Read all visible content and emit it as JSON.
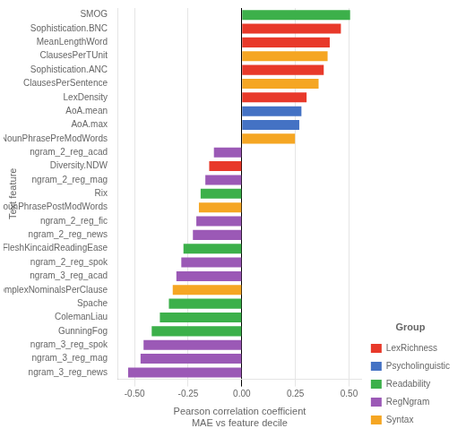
{
  "chart_data": {
    "type": "bar",
    "orientation": "horizontal",
    "categories": [
      "SMOG",
      "Sophistication.BNC",
      "MeanLengthWord",
      "ClausesPerTUnit",
      "Sophistication.ANC",
      "ClausesPerSentence",
      "LexDensity",
      "AoA.mean",
      "AoA.max",
      "NounPhrasePreModWords",
      "ngram_2_reg_acad",
      "Diversity.NDW",
      "ngram_2_reg_mag",
      "Rix",
      "NounPhrasePostModWords",
      "ngram_2_reg_fic",
      "ngram_2_reg_news",
      "FleshKincaidReadingEase",
      "ngram_2_reg_spok",
      "ngram_3_reg_acad",
      "ComplexNominalsPerClause",
      "Spache",
      "ColemanLiau",
      "GunningFog",
      "ngram_3_reg_spok",
      "ngram_3_reg_mag",
      "ngram_3_reg_news"
    ],
    "series": [
      {
        "name": "LexRichness",
        "color": "#E8392A",
        "values": [
          null,
          0.462,
          0.41,
          null,
          0.382,
          null,
          0.302,
          null,
          null,
          null,
          null,
          -0.152,
          null,
          null,
          null,
          null,
          null,
          null,
          null,
          null,
          null,
          null,
          null,
          null,
          null,
          null,
          null
        ]
      },
      {
        "name": "Psycholinguistic",
        "color": "#4472C4",
        "values": [
          null,
          null,
          null,
          null,
          null,
          null,
          null,
          0.278,
          0.268,
          null,
          null,
          null,
          null,
          null,
          null,
          null,
          null,
          null,
          null,
          null,
          null,
          null,
          null,
          null,
          null,
          null,
          null
        ]
      },
      {
        "name": "Readability",
        "color": "#3CB04A",
        "values": [
          0.505,
          null,
          null,
          null,
          null,
          null,
          null,
          null,
          null,
          null,
          null,
          null,
          null,
          -0.192,
          null,
          null,
          null,
          -0.272,
          null,
          null,
          null,
          -0.34,
          -0.382,
          -0.42,
          null,
          null,
          null
        ]
      },
      {
        "name": "RegNgram",
        "color": "#9B59B6",
        "values": [
          null,
          null,
          null,
          null,
          null,
          null,
          null,
          null,
          null,
          null,
          -0.13,
          null,
          -0.17,
          null,
          null,
          -0.212,
          -0.228,
          null,
          -0.282,
          -0.305,
          null,
          null,
          null,
          null,
          -0.458,
          -0.472,
          -0.53
        ]
      },
      {
        "name": "Syntax",
        "color": "#F5A623",
        "values": [
          null,
          null,
          null,
          0.4,
          null,
          0.358,
          null,
          null,
          null,
          0.248,
          null,
          null,
          null,
          null,
          -0.2,
          null,
          null,
          null,
          null,
          null,
          -0.322,
          null,
          null,
          null,
          null,
          null,
          null
        ]
      }
    ],
    "xlabel": "Pearson correlation coefficient\nMAE vs feature decile",
    "ylabel": "Text feature",
    "legend_title": "Group",
    "legend": "lower right",
    "xlim": [
      -0.58,
      0.56
    ],
    "xticks": [
      {
        "value": -0.5,
        "label": "-0.50"
      },
      {
        "value": -0.25,
        "label": "-0.25"
      },
      {
        "value": 0.0,
        "label": "0.00"
      },
      {
        "value": 0.25,
        "label": "0.25"
      },
      {
        "value": 0.5,
        "label": "0.50"
      }
    ],
    "grid": true
  }
}
